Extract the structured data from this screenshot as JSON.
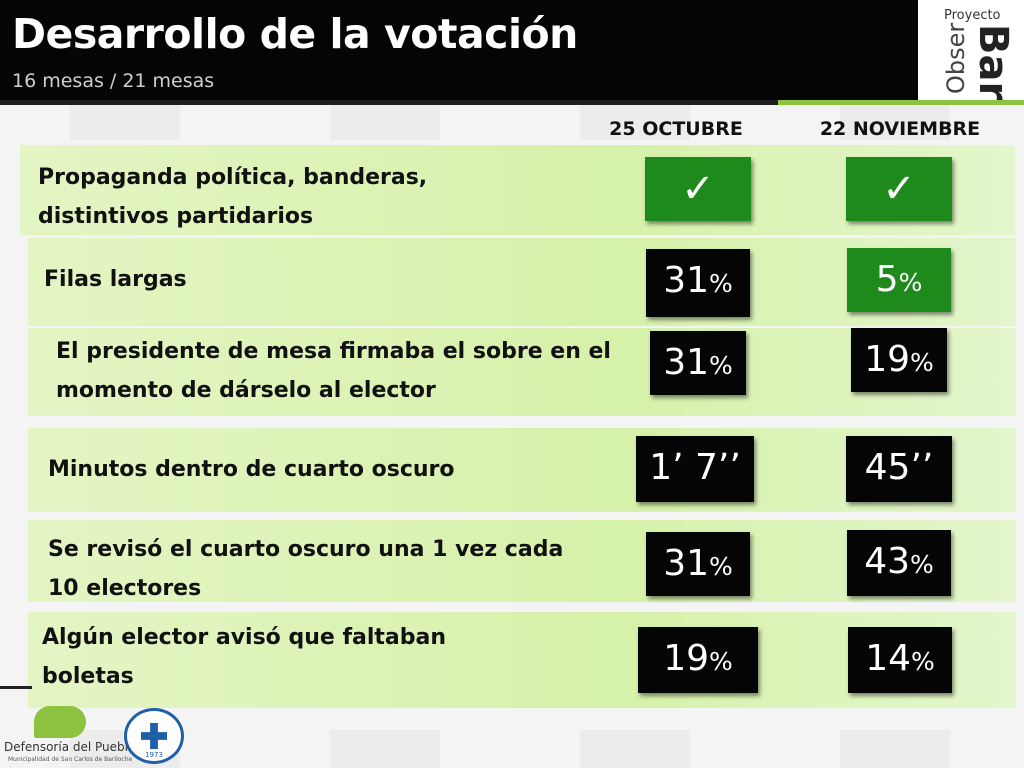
{
  "header": {
    "title": "Desarrollo de la votación",
    "subtitle": "16 mesas  / 21 mesas"
  },
  "logo": {
    "top_text": "Proyecto",
    "big_text": "Bar",
    "side_text": "Obser"
  },
  "columns": [
    "25 OCTUBRE",
    "22 NOVIEMBRE"
  ],
  "rows": [
    {
      "label": "Propaganda política, banderas, distintivos partidarios",
      "v1": "✓",
      "v2": "✓"
    },
    {
      "label": "Filas largas",
      "v1": "31",
      "v2": "5"
    },
    {
      "label": "El presidente de mesa firmaba el sobre en el momento de dárselo al elector",
      "v1": "31",
      "v2": "19"
    },
    {
      "label": "Minutos dentro de cuarto oscuro",
      "v1": "1’ 7’’",
      "v2": "45’’"
    },
    {
      "label": "Se revisó el cuarto oscuro una 1 vez cada 10 electores",
      "v1": "31",
      "v2": "43"
    },
    {
      "label": "Algún elector avisó que faltaban boletas",
      "v1": "19",
      "v2": "14"
    }
  ],
  "percent_sign": "%",
  "colors": {
    "accent_green": "#1e8a1c",
    "band_green": "#d6f1a9",
    "header_bg": "#050505",
    "brand_green": "#8dc341"
  },
  "footer": {
    "org_name": "Defensoría del Pueblo",
    "org_sub": "Municipalidad de San Carlos de Bariloche",
    "university_year": "1973"
  }
}
